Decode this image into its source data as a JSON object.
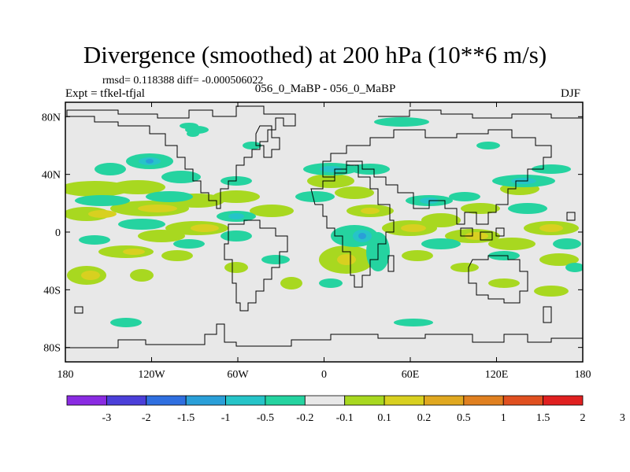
{
  "title": "Divergence (smoothed) at 200 hPa (10**6 m/s)",
  "stats": "rmsd= 0.118388 diff= -0.000506022",
  "experiment": "Expt = tfkel-tfjal",
  "subtitle": "056_0_MaBP - 056_0_MaBP",
  "season": "DJF",
  "map": {
    "projection": "cylindrical-equidistant",
    "lon_range": [
      -180,
      180
    ],
    "lat_range": [
      -90,
      90
    ],
    "background_color": "#e8e8e8",
    "lon_ticks": [
      {
        "value": -180,
        "label": "180"
      },
      {
        "value": -120,
        "label": "120W"
      },
      {
        "value": -60,
        "label": "60W"
      },
      {
        "value": 0,
        "label": "0"
      },
      {
        "value": 60,
        "label": "60E"
      },
      {
        "value": 120,
        "label": "120E"
      },
      {
        "value": 180,
        "label": "180"
      }
    ],
    "lat_ticks": [
      {
        "value": 80,
        "label": "80N"
      },
      {
        "value": 40,
        "label": "40N"
      },
      {
        "value": 0,
        "label": "0"
      },
      {
        "value": -40,
        "label": "40S"
      },
      {
        "value": -80,
        "label": "80S"
      }
    ]
  },
  "colorbar": {
    "colors": [
      "#8a2be2",
      "#4b3fd9",
      "#2f6fe0",
      "#2a9fd8",
      "#26c4c8",
      "#25d3a0",
      "#e8e8e8",
      "#a8d820",
      "#d8d020",
      "#e0a820",
      "#e08020",
      "#e05020",
      "#e02020"
    ],
    "labels": [
      "-3",
      "-2",
      "-1.5",
      "-1",
      "-0.5",
      "-0.2",
      "-0.1",
      "0.1",
      "0.2",
      "0.5",
      "1",
      "1.5",
      "2",
      "3"
    ]
  }
}
